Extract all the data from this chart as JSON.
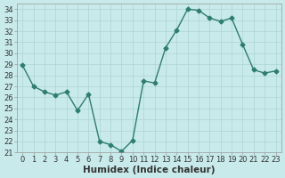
{
  "x": [
    0,
    1,
    2,
    3,
    4,
    5,
    6,
    7,
    8,
    9,
    10,
    11,
    12,
    13,
    14,
    15,
    16,
    17,
    18,
    19,
    20,
    21,
    22,
    23
  ],
  "y": [
    28.9,
    27.0,
    26.5,
    26.2,
    26.5,
    24.8,
    26.3,
    22.0,
    21.7,
    21.1,
    22.1,
    27.5,
    27.3,
    30.5,
    32.1,
    34.0,
    33.9,
    33.2,
    32.9,
    33.2,
    30.8,
    28.5,
    28.2,
    28.4
  ],
  "line_color": "#2e7d6e",
  "marker": "D",
  "marker_size": 2.5,
  "bg_color": "#c8eaea",
  "grid_color": "#aed4d4",
  "xlabel": "Humidex (Indice chaleur)",
  "ylim": [
    21,
    34.5
  ],
  "xlim": [
    -0.5,
    23.5
  ],
  "yticks": [
    21,
    22,
    23,
    24,
    25,
    26,
    27,
    28,
    29,
    30,
    31,
    32,
    33,
    34
  ],
  "xticks": [
    0,
    1,
    2,
    3,
    4,
    5,
    6,
    7,
    8,
    9,
    10,
    11,
    12,
    13,
    14,
    15,
    16,
    17,
    18,
    19,
    20,
    21,
    22,
    23
  ],
  "tick_fontsize": 6.0,
  "xlabel_fontsize": 7.5,
  "line_width": 1.0
}
